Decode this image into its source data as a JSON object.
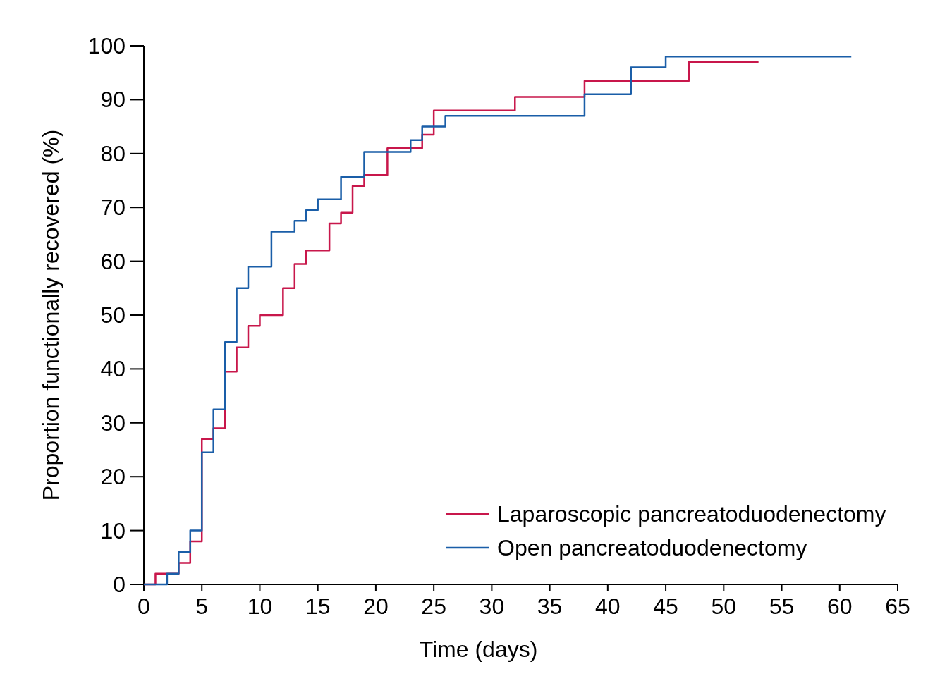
{
  "chart_data": {
    "type": "step",
    "xlabel": "Time (days)",
    "ylabel": "Proportion functionally recovered (%)",
    "xlim": [
      0,
      65
    ],
    "ylim": [
      0,
      100
    ],
    "xticks": [
      0,
      5,
      10,
      15,
      20,
      25,
      30,
      35,
      40,
      45,
      50,
      55,
      60,
      65
    ],
    "yticks": [
      0,
      10,
      20,
      30,
      40,
      50,
      60,
      70,
      80,
      90,
      100
    ],
    "grid": false,
    "legend": "bottom right",
    "series": [
      {
        "name": "Laparoscopic pancreatoduodenectomy",
        "color": "#c8174b",
        "x": [
          0,
          1,
          3,
          4,
          5,
          6,
          7,
          8,
          9,
          10,
          12,
          13,
          14,
          16,
          17,
          18,
          19,
          21,
          24,
          25,
          32,
          38,
          47,
          53
        ],
        "values": [
          0,
          2,
          4,
          8,
          27,
          29,
          39.5,
          44,
          48,
          50,
          55,
          59.5,
          62,
          67,
          69,
          74,
          76,
          81,
          83.5,
          88,
          90.5,
          93.5,
          97,
          97
        ]
      },
      {
        "name": "Open pancreatoduodenectomy",
        "color": "#1a5ea8",
        "x": [
          0,
          2,
          3,
          4,
          5,
          6,
          7,
          8,
          9,
          11,
          13,
          14,
          15,
          17,
          19,
          23,
          24,
          26,
          38,
          42,
          45,
          61
        ],
        "values": [
          0,
          2,
          6,
          10,
          24.5,
          32.5,
          45,
          55,
          59,
          65.5,
          67.5,
          69.5,
          71.5,
          75.7,
          80.3,
          82.5,
          85,
          87,
          91,
          96,
          98,
          98
        ]
      }
    ]
  }
}
